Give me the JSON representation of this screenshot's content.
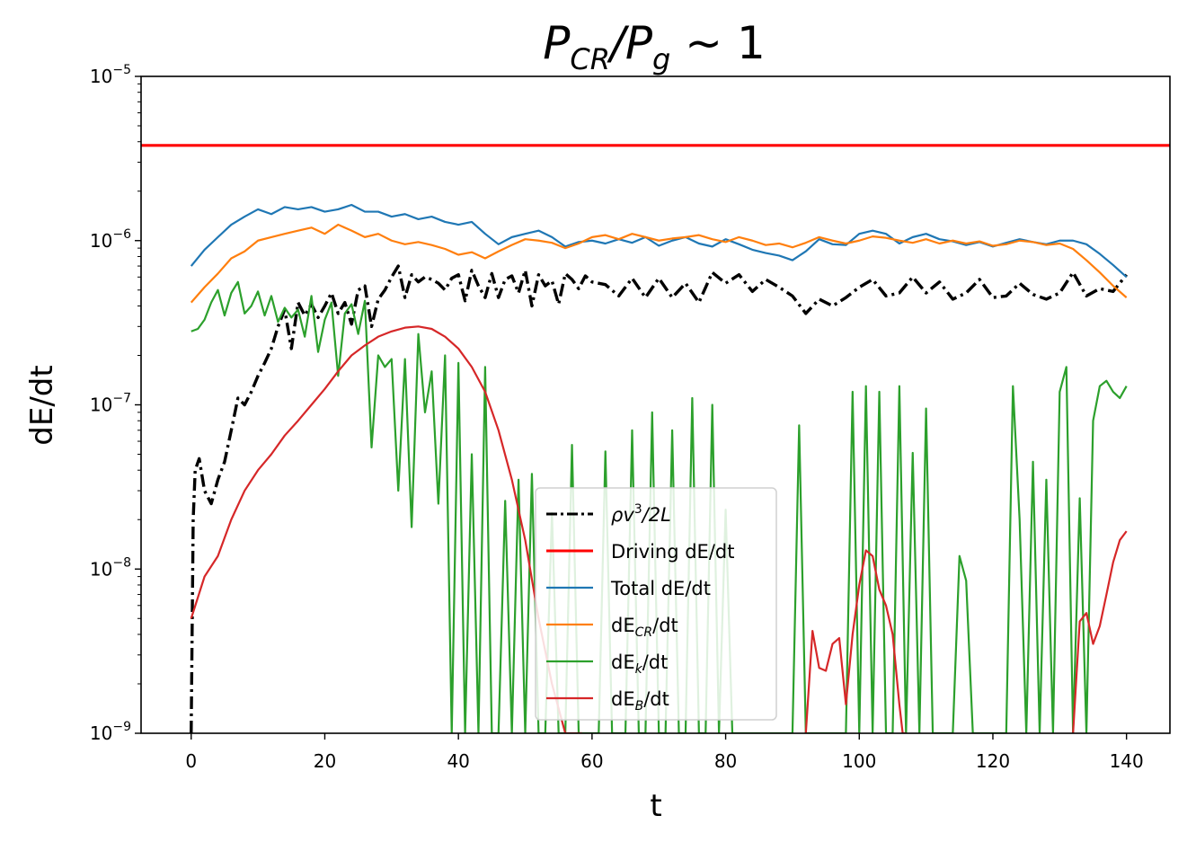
{
  "chart_data": {
    "type": "line",
    "title": "P_CR/P_g ~ 1",
    "title_parts": {
      "p1": "P",
      "s1": "CR",
      "slash": "/",
      "p2": "P",
      "s2": "g",
      "tail": " ~ 1"
    },
    "xlabel": "t",
    "ylabel": "dE/dt",
    "xlim": [
      -7.5,
      146.5
    ],
    "ylim": [
      1e-09,
      1e-05
    ],
    "yscale": "log",
    "x_ticks": [
      0,
      20,
      40,
      60,
      80,
      100,
      120,
      140
    ],
    "y_ticks": [
      {
        "exp": -9,
        "label_base": "10",
        "label_exp": "−9"
      },
      {
        "exp": -8,
        "label_base": "10",
        "label_exp": "−8"
      },
      {
        "exp": -7,
        "label_base": "10",
        "label_exp": "−7"
      },
      {
        "exp": -6,
        "label_base": "10",
        "label_exp": "−6"
      },
      {
        "exp": -5,
        "label_base": "10",
        "label_exp": "−5"
      }
    ],
    "grid": false,
    "legend_position": "lower-center",
    "series": [
      {
        "key": "rho",
        "legend": {
          "pre": "ρv",
          "sup": "3",
          "post": "/2L",
          "italic": true
        },
        "color": "#000000",
        "dash": "dashdot",
        "x": [
          0,
          0.3,
          0.6,
          1.2,
          2,
          3,
          4,
          5,
          6,
          7,
          8,
          9,
          10,
          11,
          12,
          13,
          14,
          15,
          16,
          17,
          18,
          19,
          20,
          21,
          22,
          23,
          24,
          25,
          26,
          27,
          28,
          29,
          30,
          31,
          32,
          33,
          34,
          35,
          36,
          37,
          38,
          39,
          40,
          41,
          42,
          43,
          44,
          45,
          46,
          47,
          48,
          49,
          50,
          51,
          52,
          53,
          54,
          55,
          56,
          57,
          58,
          59,
          60,
          62,
          64,
          66,
          68,
          70,
          72,
          74,
          76,
          78,
          80,
          82,
          84,
          86,
          88,
          90,
          92,
          94,
          96,
          98,
          100,
          102,
          104,
          106,
          108,
          110,
          112,
          114,
          116,
          118,
          120,
          122,
          124,
          126,
          128,
          130,
          132,
          134,
          136,
          138,
          140
        ],
        "y": [
          1e-09,
          2e-08,
          4e-08,
          4.7e-08,
          3e-08,
          2.5e-08,
          3.5e-08,
          4.5e-08,
          7e-08,
          1.1e-07,
          1e-07,
          1.2e-07,
          1.5e-07,
          1.8e-07,
          2.2e-07,
          3e-07,
          3.8e-07,
          2.2e-07,
          4.2e-07,
          3.5e-07,
          4.1e-07,
          3.4e-07,
          4e-07,
          4.8e-07,
          3.6e-07,
          4.2e-07,
          3.1e-07,
          5e-07,
          5.3e-07,
          3e-07,
          4.4e-07,
          5e-07,
          6e-07,
          7e-07,
          4.5e-07,
          6.2e-07,
          5.6e-07,
          6e-07,
          5.8e-07,
          5.5e-07,
          5e-07,
          5.9e-07,
          6.2e-07,
          4.3e-07,
          6.6e-07,
          5.3e-07,
          4.5e-07,
          6.3e-07,
          4.5e-07,
          5.8e-07,
          6.1e-07,
          4.8e-07,
          6.6e-07,
          4e-07,
          6.2e-07,
          5.3e-07,
          5.7e-07,
          4.1e-07,
          6.3e-07,
          5.8e-07,
          5.1e-07,
          6.1e-07,
          5.6e-07,
          5.4e-07,
          4.6e-07,
          5.9e-07,
          4.5e-07,
          5.9e-07,
          4.5e-07,
          5.5e-07,
          4.2e-07,
          6.4e-07,
          5.5e-07,
          6.2e-07,
          4.9e-07,
          5.8e-07,
          5.2e-07,
          4.6e-07,
          3.6e-07,
          4.4e-07,
          4e-07,
          4.5e-07,
          5.2e-07,
          5.8e-07,
          4.6e-07,
          4.8e-07,
          6e-07,
          4.8e-07,
          5.6e-07,
          4.4e-07,
          4.8e-07,
          5.8e-07,
          4.5e-07,
          4.6e-07,
          5.5e-07,
          4.7e-07,
          4.4e-07,
          4.8e-07,
          6.4e-07,
          4.6e-07,
          5.1e-07,
          4.9e-07,
          6.2e-07
        ],
        "width": 3.4
      },
      {
        "key": "driving",
        "legend": {
          "pre": "Driving dE/dt"
        },
        "color": "#ff0000",
        "dash": "solid",
        "x": [
          -7.5,
          146.5
        ],
        "y": [
          3.8e-06,
          3.8e-06
        ],
        "width": 3.2
      },
      {
        "key": "total",
        "legend": {
          "pre": "Total dE/dt"
        },
        "color": "#1f77b4",
        "dash": "solid",
        "x": [
          0,
          2,
          4,
          6,
          8,
          10,
          12,
          14,
          16,
          18,
          20,
          22,
          24,
          26,
          28,
          30,
          32,
          34,
          36,
          38,
          40,
          42,
          44,
          46,
          48,
          50,
          52,
          54,
          56,
          58,
          60,
          62,
          64,
          66,
          68,
          70,
          72,
          74,
          76,
          78,
          80,
          82,
          84,
          86,
          88,
          90,
          92,
          94,
          96,
          98,
          100,
          102,
          104,
          106,
          108,
          110,
          112,
          114,
          116,
          118,
          120,
          122,
          124,
          126,
          128,
          130,
          132,
          134,
          136,
          138,
          140
        ],
        "y": [
          7e-07,
          8.8e-07,
          1.05e-06,
          1.25e-06,
          1.4e-06,
          1.55e-06,
          1.45e-06,
          1.6e-06,
          1.55e-06,
          1.6e-06,
          1.5e-06,
          1.55e-06,
          1.65e-06,
          1.5e-06,
          1.5e-06,
          1.4e-06,
          1.45e-06,
          1.35e-06,
          1.4e-06,
          1.3e-06,
          1.25e-06,
          1.3e-06,
          1.1e-06,
          9.5e-07,
          1.05e-06,
          1.1e-06,
          1.15e-06,
          1.05e-06,
          9.2e-07,
          9.8e-07,
          1e-06,
          9.6e-07,
          1.02e-06,
          9.7e-07,
          1.05e-06,
          9.3e-07,
          1e-06,
          1.05e-06,
          9.6e-07,
          9.2e-07,
          1.02e-06,
          9.5e-07,
          8.8e-07,
          8.4e-07,
          8.1e-07,
          7.6e-07,
          8.6e-07,
          1.02e-06,
          9.5e-07,
          9.4e-07,
          1.1e-06,
          1.15e-06,
          1.1e-06,
          9.6e-07,
          1.05e-06,
          1.1e-06,
          1.02e-06,
          9.9e-07,
          9.4e-07,
          9.8e-07,
          9.2e-07,
          9.7e-07,
          1.02e-06,
          9.8e-07,
          9.5e-07,
          1e-06,
          1e-06,
          9.5e-07,
          8.3e-07,
          7.1e-07,
          6e-07
        ],
        "width": 2.2
      },
      {
        "key": "cr",
        "legend": {
          "pre": "dE",
          "sub": "CR",
          "post": "/dt"
        },
        "color": "#ff7f0e",
        "dash": "solid",
        "x": [
          0,
          2,
          4,
          6,
          8,
          10,
          12,
          14,
          16,
          18,
          20,
          22,
          24,
          26,
          28,
          30,
          32,
          34,
          36,
          38,
          40,
          42,
          44,
          46,
          48,
          50,
          52,
          54,
          56,
          58,
          60,
          62,
          64,
          66,
          68,
          70,
          72,
          74,
          76,
          78,
          80,
          82,
          84,
          86,
          88,
          90,
          92,
          94,
          96,
          98,
          100,
          102,
          104,
          106,
          108,
          110,
          112,
          114,
          116,
          118,
          120,
          122,
          124,
          126,
          128,
          130,
          132,
          134,
          136,
          138,
          140
        ],
        "y": [
          4.2e-07,
          5.2e-07,
          6.3e-07,
          7.8e-07,
          8.6e-07,
          1e-06,
          1.05e-06,
          1.1e-06,
          1.15e-06,
          1.2e-06,
          1.1e-06,
          1.25e-06,
          1.15e-06,
          1.05e-06,
          1.1e-06,
          1e-06,
          9.5e-07,
          9.8e-07,
          9.4e-07,
          8.9e-07,
          8.2e-07,
          8.5e-07,
          7.8e-07,
          8.6e-07,
          9.4e-07,
          1.02e-06,
          1e-06,
          9.7e-07,
          9e-07,
          9.6e-07,
          1.05e-06,
          1.08e-06,
          1.02e-06,
          1.1e-06,
          1.05e-06,
          1e-06,
          1.03e-06,
          1.05e-06,
          1.08e-06,
          1.02e-06,
          9.8e-07,
          1.05e-06,
          1e-06,
          9.4e-07,
          9.6e-07,
          9.1e-07,
          9.7e-07,
          1.05e-06,
          1e-06,
          9.6e-07,
          1e-06,
          1.06e-06,
          1.04e-06,
          1e-06,
          9.7e-07,
          1.02e-06,
          9.6e-07,
          1e-06,
          9.6e-07,
          9.9e-07,
          9.3e-07,
          9.5e-07,
          1e-06,
          9.8e-07,
          9.4e-07,
          9.6e-07,
          8.9e-07,
          7.6e-07,
          6.4e-07,
          5.3e-07,
          4.5e-07
        ],
        "width": 2.2
      },
      {
        "key": "k",
        "legend": {
          "pre": "dE",
          "sub": "k",
          "post": "/dt"
        },
        "color": "#2ca02c",
        "dash": "solid",
        "x": [
          0,
          1,
          2,
          3,
          4,
          5,
          6,
          7,
          8,
          9,
          10,
          11,
          12,
          13,
          14,
          15,
          16,
          17,
          18,
          19,
          20,
          21,
          22,
          23,
          24,
          25,
          26,
          27,
          28,
          29,
          30,
          31,
          32,
          33,
          34,
          35,
          36,
          37,
          38,
          39,
          40,
          41,
          42,
          43,
          44,
          45,
          46,
          47,
          48,
          49,
          50,
          51,
          52,
          53,
          54,
          55,
          56,
          57,
          58,
          59,
          60,
          61,
          62,
          63,
          64,
          65,
          66,
          67,
          68,
          69,
          70,
          71,
          72,
          73,
          74,
          75,
          76,
          77,
          78,
          79,
          80,
          81,
          82,
          83,
          84,
          85,
          86,
          87,
          88,
          89,
          90,
          91,
          92,
          93,
          94,
          95,
          96,
          97,
          98,
          99,
          100,
          101,
          102,
          103,
          104,
          105,
          106,
          107,
          108,
          109,
          110,
          111,
          112,
          113,
          114,
          115,
          116,
          117,
          118,
          119,
          120,
          121,
          122,
          123,
          124,
          125,
          126,
          127,
          128,
          129,
          130,
          131,
          132,
          133,
          134,
          135,
          136,
          137,
          138,
          139,
          140
        ],
        "y": [
          2.8e-07,
          2.9e-07,
          3.3e-07,
          4.2e-07,
          5e-07,
          3.5e-07,
          4.8e-07,
          5.6e-07,
          3.6e-07,
          4e-07,
          4.9e-07,
          3.5e-07,
          4.6e-07,
          3.2e-07,
          3.9e-07,
          3.4e-07,
          3.8e-07,
          2.6e-07,
          4.6e-07,
          2.1e-07,
          3.3e-07,
          4.2e-07,
          1.5e-07,
          3.6e-07,
          4.1e-07,
          2.7e-07,
          4.3e-07,
          5.5e-08,
          2e-07,
          1.7e-07,
          1.9e-07,
          3e-08,
          1.9e-07,
          1.8e-08,
          2.7e-07,
          9e-08,
          1.6e-07,
          2.5e-08,
          2e-07,
          1e-09,
          1.8e-07,
          1e-09,
          5e-08,
          1e-09,
          1.7e-07,
          1e-09,
          1e-09,
          2.6e-08,
          1e-09,
          3.5e-08,
          1e-09,
          3.8e-08,
          1e-09,
          1e-09,
          2.2e-08,
          1e-09,
          1e-09,
          5.7e-08,
          1e-09,
          1e-09,
          1e-09,
          1e-09,
          5.2e-08,
          1e-09,
          1e-09,
          1e-09,
          7e-08,
          1e-09,
          1e-09,
          9e-08,
          1e-09,
          1e-09,
          7e-08,
          1e-09,
          1e-09,
          1.1e-07,
          1e-09,
          1e-09,
          1e-07,
          1e-09,
          2.3e-08,
          1e-09,
          1e-09,
          1e-09,
          1e-09,
          1e-09,
          1e-09,
          1e-09,
          1e-09,
          1e-09,
          1e-09,
          7.5e-08,
          1e-09,
          1e-09,
          1e-09,
          1e-09,
          1e-09,
          1e-09,
          1e-09,
          1.2e-07,
          1e-09,
          1.3e-07,
          1e-09,
          1.2e-07,
          1e-09,
          1e-09,
          1.3e-07,
          1e-09,
          5.1e-08,
          1e-09,
          9.5e-08,
          1e-09,
          1e-09,
          1e-09,
          1e-09,
          1.2e-08,
          8.5e-09,
          1e-09,
          1e-09,
          1e-09,
          1e-09,
          1e-09,
          1e-09,
          1.3e-07,
          2e-08,
          1e-09,
          4.5e-08,
          1e-09,
          3.5e-08,
          1e-09,
          1.2e-07,
          1.7e-07,
          1e-09,
          2.7e-08,
          1e-09,
          8e-08,
          1.3e-07,
          1.4e-07,
          1.2e-07,
          1.1e-07,
          1.3e-07
        ],
        "width": 2.2
      },
      {
        "key": "b",
        "legend": {
          "pre": "dE",
          "sub": "B",
          "post": "/dt"
        },
        "color": "#d62728",
        "dash": "solid",
        "x": [
          0,
          2,
          4,
          6,
          8,
          10,
          12,
          14,
          16,
          18,
          20,
          22,
          24,
          26,
          28,
          30,
          32,
          34,
          36,
          38,
          40,
          42,
          44,
          46,
          48,
          50,
          52,
          54,
          56,
          57.5,
          58,
          58.5,
          null,
          92,
          93,
          94,
          95,
          96,
          97,
          98,
          99,
          100,
          101,
          102,
          103,
          104,
          105,
          106,
          106.5,
          107,
          null,
          132,
          133,
          134,
          135,
          136,
          137,
          138,
          139,
          140
        ],
        "y": [
          5e-09,
          9e-09,
          1.2e-08,
          2e-08,
          3e-08,
          4e-08,
          5e-08,
          6.5e-08,
          8e-08,
          1e-07,
          1.25e-07,
          1.6e-07,
          2e-07,
          2.3e-07,
          2.6e-07,
          2.8e-07,
          2.95e-07,
          3e-07,
          2.9e-07,
          2.6e-07,
          2.2e-07,
          1.7e-07,
          1.2e-07,
          7e-08,
          3.5e-08,
          1.5e-08,
          5e-09,
          2e-09,
          1e-09,
          1e-09,
          1e-09,
          1e-09,
          null,
          1e-09,
          4.2e-09,
          2.5e-09,
          2.4e-09,
          3.5e-09,
          3.8e-09,
          1.5e-09,
          4e-09,
          8e-09,
          1.3e-08,
          1.2e-08,
          7.5e-09,
          6e-09,
          4e-09,
          1.5e-09,
          1e-09,
          1e-09,
          null,
          1e-09,
          4.8e-09,
          5.4e-09,
          3.5e-09,
          4.5e-09,
          7e-09,
          1.1e-08,
          1.5e-08,
          1.7e-08
        ],
        "width": 2.2
      }
    ]
  }
}
